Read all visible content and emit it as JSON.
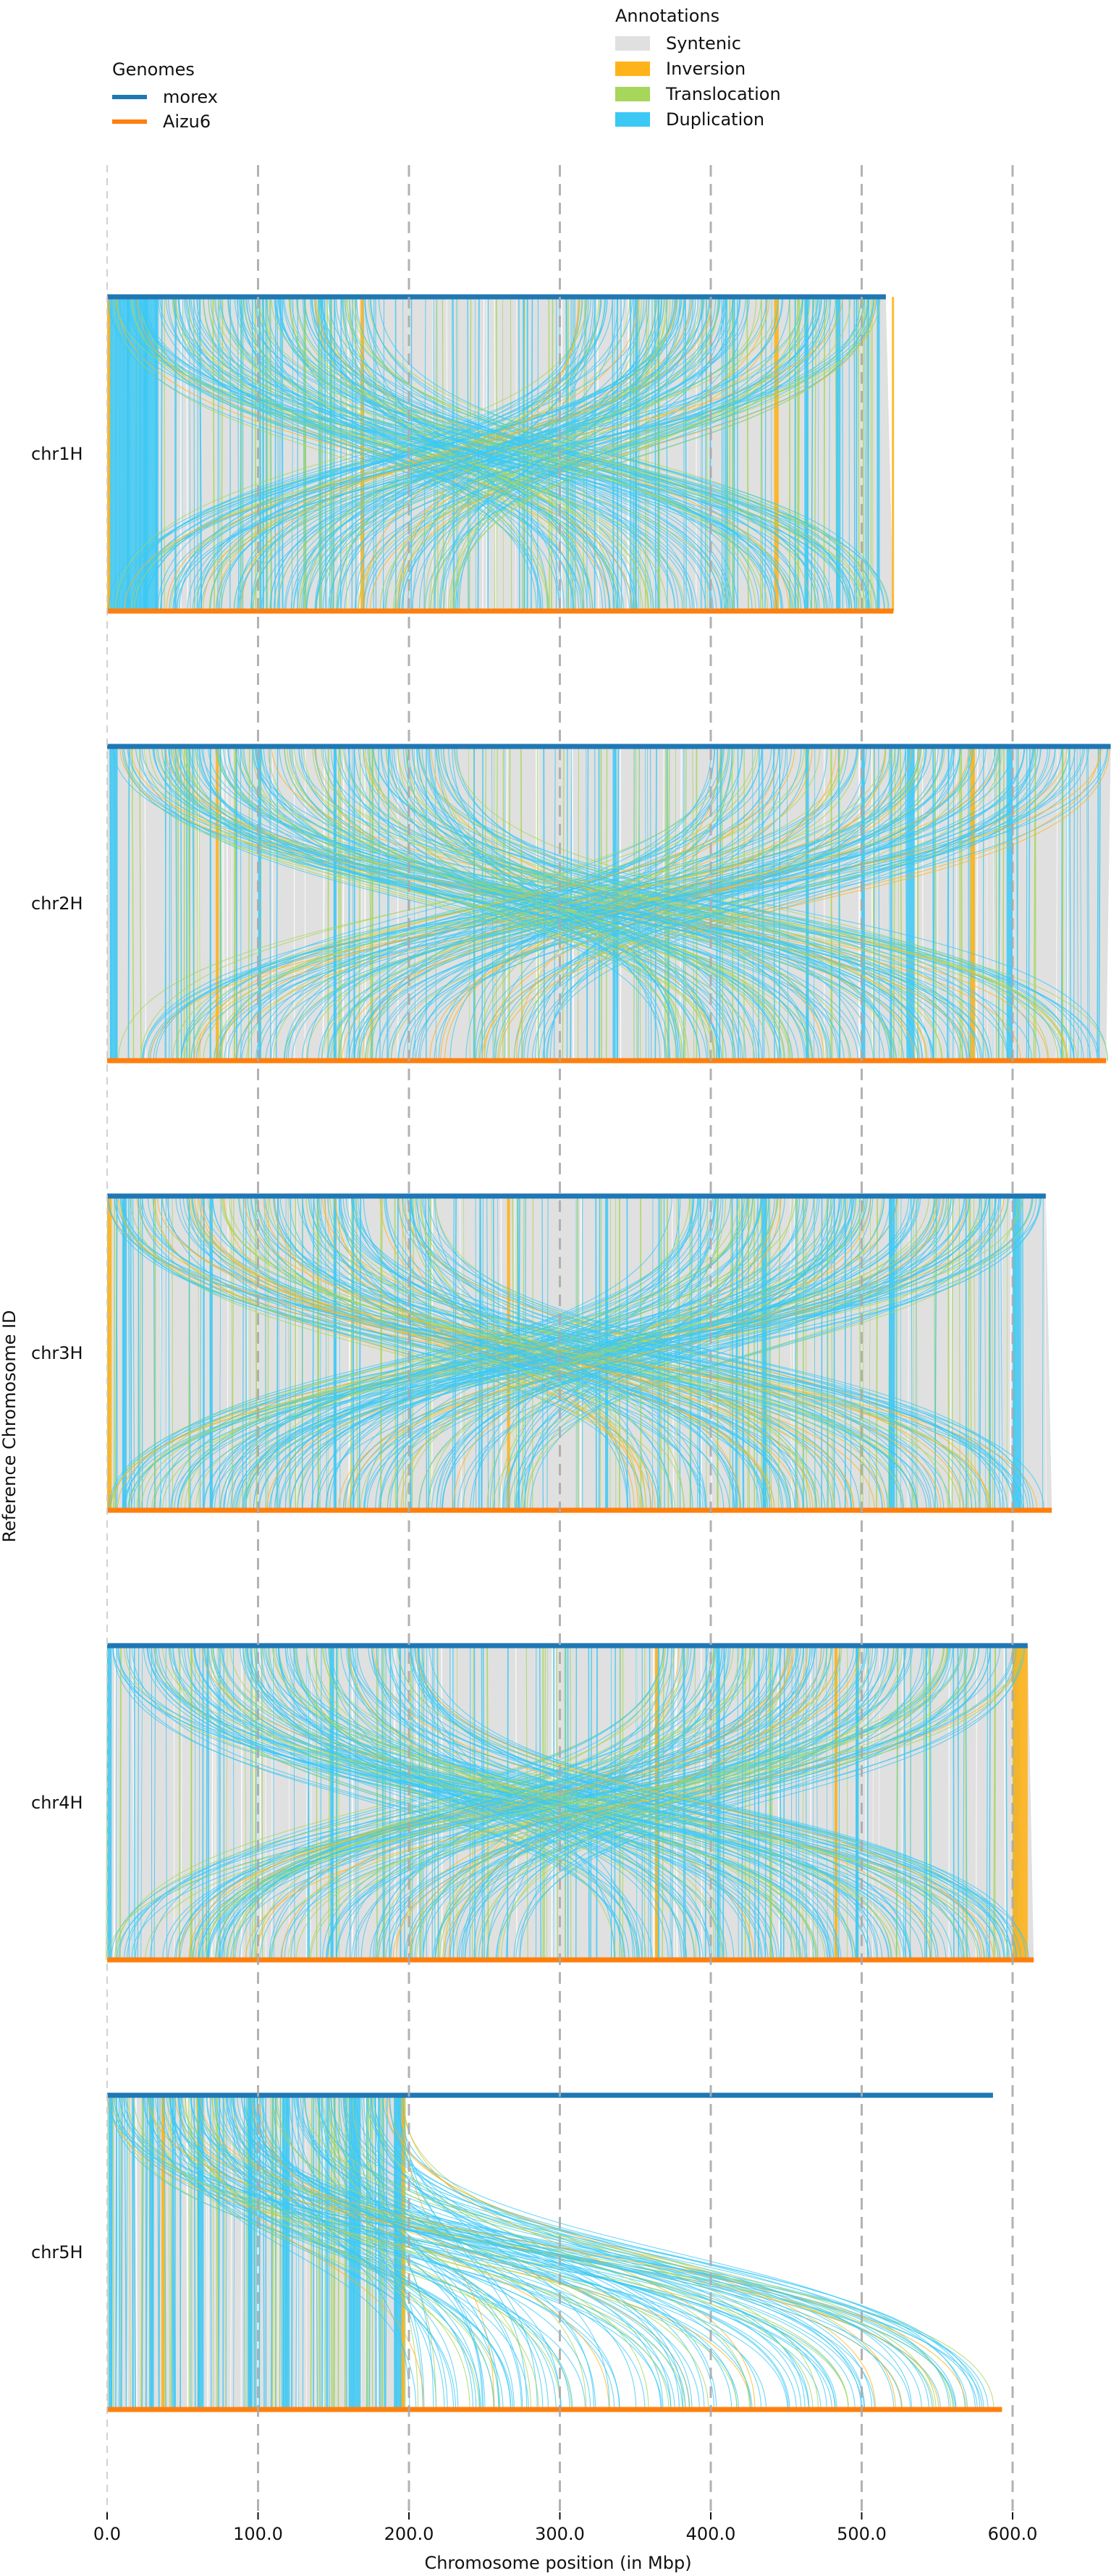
{
  "chart_data": {
    "type": "synteny",
    "xlabel": "Chromosome position (in Mbp)",
    "ylabel": "Reference Chromosome ID",
    "xlim": [
      0,
      665
    ],
    "x_ticks": [
      0,
      100,
      200,
      300,
      400,
      500,
      600
    ],
    "x_tick_labels": [
      "0.0",
      "100.0",
      "200.0",
      "300.0",
      "400.0",
      "500.0",
      "600.0"
    ],
    "grid": "vertical dashed at each tick",
    "legends": {
      "genomes": {
        "title": "Genomes",
        "position": "top-left",
        "items": [
          {
            "label": "morex",
            "color": "#1f77b4"
          },
          {
            "label": "Aizu6",
            "color": "#ff7f0e"
          }
        ]
      },
      "annotations": {
        "title": "Annotations",
        "position": "top-center",
        "items": [
          {
            "label": "Syntenic",
            "color": "#e0e0e0"
          },
          {
            "label": "Inversion",
            "color": "#ffb31a"
          },
          {
            "label": "Translocation",
            "color": "#a6d65a"
          },
          {
            "label": "Duplication",
            "color": "#3cc8f5"
          }
        ]
      }
    },
    "colors": {
      "morex": "#1f77b4",
      "aizu6": "#ff7f0e",
      "syntenic": "#e0e0e0",
      "inversion": "#ffb31a",
      "translocation": "#a6d65a",
      "duplication": "#3cc8f5",
      "grid": "#aaaaaa"
    },
    "chromosomes": [
      {
        "id": "chr1H",
        "ref_length": 516,
        "qry_length": 521,
        "syntenic_spans": [
          [
            0,
            516,
            0,
            521
          ]
        ],
        "inversions": [
          [
            0,
            2
          ],
          [
            168,
            170
          ],
          [
            442,
            445
          ],
          [
            520,
            521
          ]
        ],
        "vertical_bands": [
          [
            1,
            33
          ],
          [
            13,
            15
          ],
          [
            24,
            27
          ],
          [
            32,
            34
          ],
          [
            103,
            104
          ],
          [
            278,
            279
          ],
          [
            462,
            464
          ],
          [
            483,
            486
          ],
          [
            510,
            512
          ]
        ],
        "notes": "dense duplication crossings"
      },
      {
        "id": "chr2H",
        "ref_length": 665,
        "qry_length": 662,
        "syntenic_spans": [
          [
            0,
            665,
            0,
            662
          ]
        ],
        "inversions": [
          [
            72,
            74
          ],
          [
            572,
            575
          ]
        ],
        "vertical_bands": [
          [
            2,
            7
          ],
          [
            68,
            69
          ],
          [
            100,
            102
          ],
          [
            150,
            152
          ],
          [
            335,
            337
          ],
          [
            463,
            465
          ],
          [
            500,
            502
          ],
          [
            530,
            535
          ],
          [
            596,
            600
          ]
        ],
        "notes": "dense duplication crossings"
      },
      {
        "id": "chr3H",
        "ref_length": 622,
        "qry_length": 626,
        "syntenic_spans": [
          [
            0,
            622,
            0,
            626
          ]
        ],
        "inversions": [
          [
            0,
            3
          ],
          [
            265,
            267
          ]
        ],
        "vertical_bands": [
          [
            10,
            13
          ],
          [
            68,
            70
          ],
          [
            150,
            152
          ],
          [
            330,
            332
          ],
          [
            435,
            437
          ],
          [
            518,
            522
          ],
          [
            600,
            605
          ]
        ],
        "notes": "dense duplication crossings"
      },
      {
        "id": "chr4H",
        "ref_length": 610,
        "qry_length": 614,
        "syntenic_spans": [
          [
            0,
            610,
            0,
            614
          ]
        ],
        "inversions": [
          [
            363,
            365
          ],
          [
            482,
            484
          ],
          [
            600,
            610
          ]
        ],
        "vertical_bands": [
          [
            0,
            3
          ],
          [
            148,
            150
          ],
          [
            364,
            366
          ],
          [
            404,
            406
          ],
          [
            496,
            498
          ],
          [
            600,
            603
          ]
        ],
        "notes": "large inversion block at chromosome end"
      },
      {
        "id": "chr5H",
        "ref_length": 587,
        "qry_length": 593,
        "syntenic_spans": [
          [
            0,
            198,
            0,
            198
          ]
        ],
        "inversions": [
          [
            36,
            38
          ],
          [
            195,
            197
          ]
        ],
        "vertical_bands": [
          [
            1,
            3
          ],
          [
            28,
            31
          ],
          [
            60,
            64
          ],
          [
            93,
            96
          ],
          [
            116,
            121
          ],
          [
            160,
            168
          ],
          [
            190,
            196
          ]
        ],
        "notes": "syntenic only up to ~198 Mbp; duplications spread along query"
      }
    ]
  }
}
